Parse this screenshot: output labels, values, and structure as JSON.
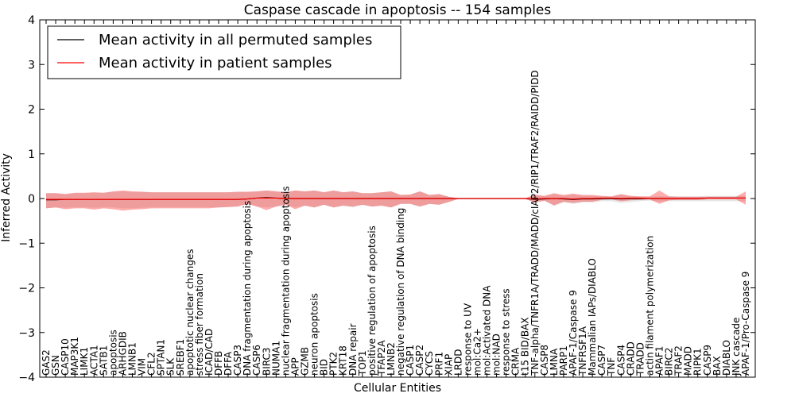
{
  "chart_data": {
    "type": "line",
    "title": "Caspase cascade in apoptosis -- 154 samples",
    "xlabel": "Cellular Entities",
    "ylabel": "Inferred Activity",
    "ylim": [
      -4,
      4
    ],
    "yticks": [
      "−4",
      "−3",
      "−2",
      "−1",
      "0",
      "1",
      "2",
      "3",
      "4"
    ],
    "grid": false,
    "legend_position": "top-left",
    "categories": [
      "GAS2",
      "GSN",
      "CASP10",
      "MAP3K1",
      "LIMK1",
      "ACTA1",
      "SATB1",
      "apoptosis",
      "ARHGDIB",
      "LMNB1",
      "VIM",
      "CFL2",
      "SPTAN1",
      "SLK",
      "SREBF1",
      "apoptotic nuclear changes",
      "stress fiber formation",
      "ICAD/CAD",
      "DFFB",
      "DFFA",
      "CASP3",
      "DNA fragmentation during apoptosis",
      "CASP6",
      "BIRC3",
      "NUMA1",
      "nuclear fragmentation during apoptosis",
      "APP",
      "GZMB",
      "neuron apoptosis",
      "BID",
      "PTK2",
      "KRT18",
      "DNA repair",
      "TOP1",
      "positive regulation of apoptosis",
      "TFAP2A",
      "LMNB2",
      "negative regulation of DNA binding",
      "CASP1",
      "CASP2",
      "CYCS",
      "PRF1",
      "XIAP",
      "LRDD",
      "response to UV",
      "mol:Ca2+",
      "mol:Activated DNA",
      "mol:NAD",
      "response to stress",
      "CRMA",
      "t15 BID/BAX",
      "TNF-alpha/TNFR1A/TRADD/MADD/cIAP2/RIP1/TRAF2/RAIDD/PIDD",
      "CASP8",
      "LMNA",
      "PARP1",
      "APAF-1/Caspase 9",
      "TNFRSF1A",
      "Mammalian IAPs/DIABLO",
      "CASP7",
      "TNF",
      "CASP4",
      "CRADD",
      "TRADD",
      "actin filament polymerization",
      "APAF1",
      "BIRC2",
      "TRAF2",
      "MADD",
      "RIPK1",
      "CASP9",
      "BAX",
      "DIABLO",
      "JNK cascade",
      "APAF-1/Pro-Caspase 9"
    ],
    "series": [
      {
        "name": "Mean activity in all permuted samples",
        "color": "#000000",
        "values": [
          -0.03,
          -0.03,
          -0.02,
          -0.02,
          -0.02,
          -0.02,
          -0.02,
          -0.02,
          -0.02,
          -0.02,
          -0.02,
          -0.02,
          -0.02,
          -0.02,
          -0.02,
          -0.02,
          -0.02,
          -0.02,
          -0.02,
          -0.02,
          -0.02,
          -0.01,
          0.01,
          0.02,
          0.01,
          0.0,
          0.0,
          0.0,
          0.0,
          0.0,
          0.0,
          0.0,
          0.0,
          0.0,
          0.0,
          0.0,
          0.0,
          0.0,
          0.0,
          0.0,
          0.0,
          0.0,
          0.0,
          0.0,
          0.0,
          0.0,
          0.0,
          0.0,
          0.0,
          0.0,
          0.0,
          -0.02,
          -0.01,
          0.0,
          -0.01,
          -0.02,
          -0.01,
          -0.01,
          0.0,
          0.0,
          -0.01,
          0.0,
          0.0,
          0.0,
          0.0,
          0.0,
          0.0,
          0.0,
          0.0,
          0.01,
          0.01,
          0.01,
          0.01,
          0.01
        ],
        "band_lower": [
          -0.22,
          -0.2,
          -0.21,
          -0.2,
          -0.2,
          -0.21,
          -0.2,
          -0.2,
          -0.22,
          -0.22,
          -0.21,
          -0.2,
          -0.2,
          -0.2,
          -0.2,
          -0.2,
          -0.2,
          -0.2,
          -0.2,
          -0.19,
          -0.18,
          -0.12,
          -0.18,
          -0.2,
          -0.18,
          -0.14,
          -0.2,
          -0.16,
          -0.2,
          -0.14,
          -0.2,
          -0.16,
          -0.2,
          -0.14,
          -0.18,
          -0.16,
          -0.2,
          -0.12,
          -0.12,
          -0.18,
          -0.12,
          -0.14,
          -0.08,
          -0.01,
          -0.01,
          -0.01,
          -0.01,
          -0.01,
          -0.01,
          -0.01,
          -0.01,
          -0.09,
          -0.05,
          -0.17,
          -0.09,
          -0.12,
          -0.09,
          -0.09,
          -0.06,
          -0.06,
          -0.1,
          -0.08,
          -0.06,
          -0.05,
          -0.07,
          -0.06,
          -0.06,
          -0.06,
          -0.06,
          -0.06,
          -0.06,
          -0.06,
          -0.06,
          -0.06
        ],
        "band_upper": [
          0.12,
          0.12,
          0.1,
          0.12,
          0.12,
          0.13,
          0.13,
          0.15,
          0.16,
          0.15,
          0.15,
          0.14,
          0.14,
          0.14,
          0.14,
          0.14,
          0.14,
          0.14,
          0.14,
          0.14,
          0.15,
          0.15,
          0.16,
          0.18,
          0.16,
          0.14,
          0.18,
          0.16,
          0.18,
          0.14,
          0.18,
          0.14,
          0.16,
          0.12,
          0.12,
          0.14,
          0.16,
          0.08,
          0.09,
          0.16,
          0.08,
          0.1,
          0.04,
          0.01,
          0.01,
          0.01,
          0.01,
          0.01,
          0.01,
          0.01,
          0.01,
          0.07,
          0.05,
          0.1,
          0.06,
          0.09,
          0.06,
          0.06,
          0.05,
          0.04,
          0.09,
          0.05,
          0.04,
          0.04,
          0.05,
          0.05,
          0.05,
          0.05,
          0.05,
          0.06,
          0.06,
          0.06,
          0.06,
          0.06
        ]
      },
      {
        "name": "Mean activity in patient samples",
        "color": "#ff0000",
        "values": [
          -0.02,
          -0.02,
          -0.02,
          -0.02,
          -0.02,
          -0.02,
          -0.02,
          -0.02,
          -0.02,
          -0.02,
          -0.02,
          -0.02,
          -0.02,
          -0.02,
          -0.02,
          -0.02,
          -0.02,
          -0.02,
          -0.02,
          -0.02,
          -0.02,
          -0.01,
          0.01,
          0.01,
          0.01,
          0.0,
          0.0,
          0.0,
          0.0,
          0.0,
          0.0,
          0.0,
          0.0,
          0.0,
          0.0,
          0.0,
          0.0,
          0.0,
          0.0,
          0.0,
          0.0,
          0.0,
          0.0,
          0.0,
          0.0,
          0.0,
          0.0,
          0.0,
          0.0,
          0.0,
          0.0,
          -0.01,
          0.0,
          0.0,
          0.0,
          -0.01,
          0.0,
          0.0,
          0.01,
          0.01,
          0.0,
          0.01,
          0.01,
          0.0,
          0.0,
          0.0,
          0.0,
          0.0,
          0.0,
          0.01,
          0.01,
          0.01,
          0.01,
          0.01
        ],
        "band_lower": [
          -0.22,
          -0.2,
          -0.24,
          -0.22,
          -0.22,
          -0.25,
          -0.22,
          -0.24,
          -0.27,
          -0.25,
          -0.24,
          -0.22,
          -0.22,
          -0.22,
          -0.22,
          -0.22,
          -0.22,
          -0.22,
          -0.2,
          -0.19,
          -0.18,
          -0.12,
          -0.18,
          -0.26,
          -0.18,
          -0.14,
          -0.24,
          -0.16,
          -0.2,
          -0.14,
          -0.2,
          -0.16,
          -0.18,
          -0.14,
          -0.18,
          -0.16,
          -0.2,
          -0.12,
          -0.12,
          -0.18,
          -0.12,
          -0.14,
          -0.08,
          -0.01,
          -0.01,
          -0.01,
          -0.01,
          -0.01,
          -0.01,
          -0.01,
          -0.01,
          -0.09,
          -0.05,
          -0.15,
          -0.07,
          -0.1,
          -0.07,
          -0.07,
          -0.03,
          -0.02,
          -0.06,
          -0.04,
          -0.03,
          -0.02,
          -0.12,
          -0.04,
          -0.03,
          -0.03,
          -0.03,
          -0.02,
          -0.02,
          -0.02,
          -0.02,
          -0.14
        ],
        "band_upper": [
          0.12,
          0.12,
          0.1,
          0.13,
          0.13,
          0.14,
          0.13,
          0.16,
          0.18,
          0.16,
          0.15,
          0.14,
          0.14,
          0.14,
          0.14,
          0.14,
          0.14,
          0.14,
          0.14,
          0.14,
          0.15,
          0.15,
          0.16,
          0.18,
          0.16,
          0.14,
          0.18,
          0.16,
          0.18,
          0.14,
          0.18,
          0.14,
          0.16,
          0.12,
          0.12,
          0.14,
          0.16,
          0.08,
          0.09,
          0.16,
          0.08,
          0.1,
          0.04,
          0.01,
          0.01,
          0.01,
          0.01,
          0.01,
          0.01,
          0.01,
          0.01,
          0.09,
          0.06,
          0.12,
          0.08,
          0.11,
          0.08,
          0.08,
          0.06,
          0.05,
          0.1,
          0.06,
          0.05,
          0.05,
          0.18,
          0.05,
          0.04,
          0.04,
          0.04,
          0.04,
          0.04,
          0.04,
          0.04,
          0.16
        ]
      }
    ]
  }
}
